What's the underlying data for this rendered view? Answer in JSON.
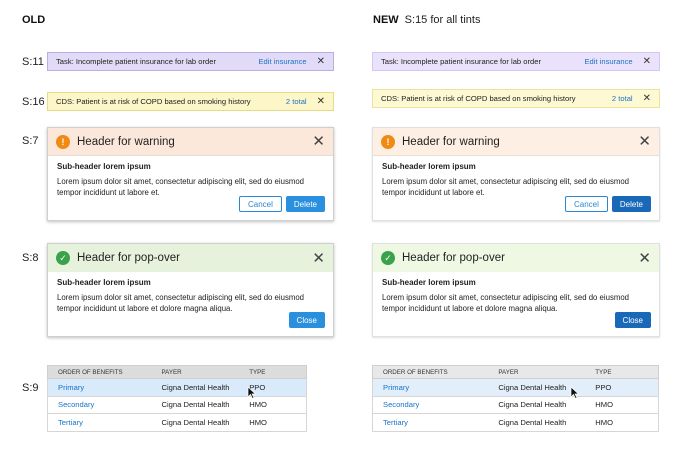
{
  "headings": {
    "old": "OLD",
    "new": "NEW",
    "new_note": "S:15 for all tints"
  },
  "row_labels": {
    "task": "S:11",
    "cds": "S:16",
    "warning": "S:7",
    "popover": "S:8",
    "table": "S:9"
  },
  "task_bar": {
    "text": "Task: Incomplete patient insurance for lab order",
    "link": "Edit insurance",
    "close": "✕"
  },
  "cds_bar": {
    "text": "CDS: Patient is at risk of COPD based on smoking history",
    "link": "2 total",
    "close": "✕"
  },
  "warning_dialog": {
    "icon": "exclamation-icon",
    "icon_glyph": "!",
    "title": "Header for warning",
    "close": "✕",
    "subheader": "Sub-header lorem ipsum",
    "body": "Lorem ipsum dolor sit amet, consectetur adipiscing elit, sed do eiusmod tempor incididunt ut labore et.",
    "cancel_label": "Cancel",
    "delete_label": "Delete"
  },
  "popover_dialog": {
    "icon": "checkmark-icon",
    "icon_glyph": "✓",
    "title": "Header for pop-over",
    "close": "✕",
    "subheader": "Sub-header lorem ipsum",
    "body": "Lorem ipsum dolor sit amet, consectetur adipiscing elit, sed do eiusmod tempor incididunt ut labore et dolore magna aliqua.",
    "close_label": "Close"
  },
  "benefits_table": {
    "headers": [
      "ORDER OF BENEFITS",
      "PAYER",
      "TYPE"
    ],
    "rows": [
      {
        "order": "Primary",
        "payer": "Cigna Dental Health",
        "type": "PPO"
      },
      {
        "order": "Secondary",
        "payer": "Cigna Dental Health",
        "type": "HMO"
      },
      {
        "order": "Tertiary",
        "payer": "Cigna Dental Health",
        "type": "HMO"
      }
    ]
  },
  "colors": {
    "link_blue": "#1a73c7",
    "old_primary_button": "#2a90de",
    "new_primary_button": "#1a68b8",
    "warning_icon": "#f08a12",
    "success_icon": "#3aa24a"
  }
}
